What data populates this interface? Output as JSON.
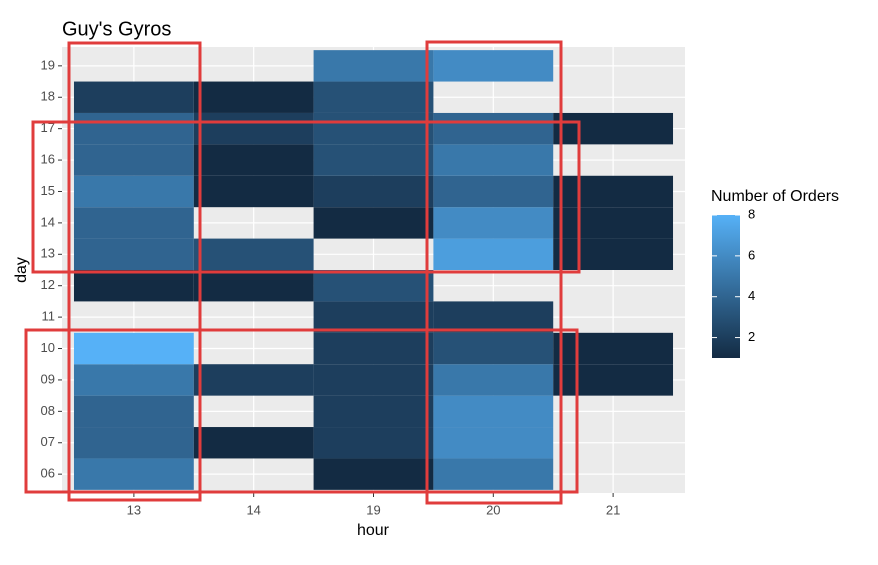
{
  "chart_data": {
    "type": "heatmap",
    "title": "Guy's Gyros",
    "x_label": "hour",
    "y_label": "day",
    "x_categories": [
      "13",
      "14",
      "19",
      "20",
      "21"
    ],
    "y_categories": [
      "06",
      "07",
      "08",
      "09",
      "10",
      "11",
      "12",
      "13",
      "14",
      "15",
      "16",
      "17",
      "18",
      "19"
    ],
    "values": [
      [
        5,
        null,
        1,
        5,
        null
      ],
      [
        4,
        1,
        2,
        6,
        null
      ],
      [
        4,
        null,
        2,
        6,
        null
      ],
      [
        5,
        2,
        2,
        5,
        1
      ],
      [
        8,
        null,
        2,
        3,
        1
      ],
      [
        null,
        null,
        2,
        2,
        null
      ],
      [
        1,
        1,
        3,
        null,
        null
      ],
      [
        4,
        3,
        null,
        7,
        1
      ],
      [
        4,
        null,
        1,
        6,
        1
      ],
      [
        5,
        1,
        2,
        4,
        1
      ],
      [
        4,
        1,
        3,
        5,
        null
      ],
      [
        4,
        2,
        3,
        4,
        1
      ],
      [
        2,
        1,
        3,
        null,
        null
      ],
      [
        null,
        null,
        5,
        6,
        null
      ]
    ],
    "legend_title": "Number of Orders",
    "color_low": "#132B43",
    "color_high": "#56B1F7",
    "clim": [
      1,
      8
    ],
    "cticks": [
      2,
      4,
      6,
      8
    ],
    "grid": true
  }
}
